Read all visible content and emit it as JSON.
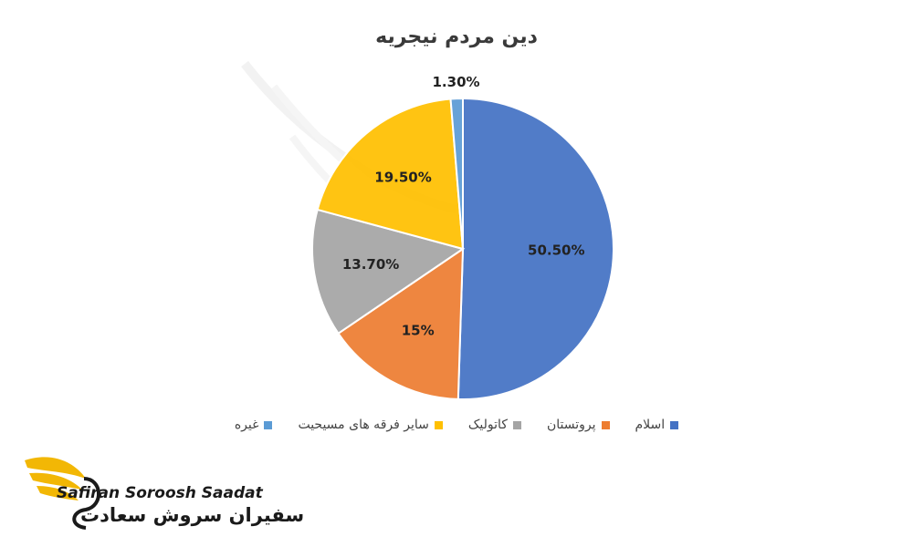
{
  "chart_data": {
    "type": "pie",
    "title": "دین مردم نیجریه",
    "slices": [
      {
        "name": "اسلام",
        "value": 50.5,
        "label": "50.50%",
        "color": "#4472C4"
      },
      {
        "name": "پروتستان",
        "value": 15.0,
        "label": "15%",
        "color": "#ED7D31"
      },
      {
        "name": "کاتولیک",
        "value": 13.7,
        "label": "13.70%",
        "color": "#A5A5A5"
      },
      {
        "name": "سایر فرقه های مسیحیت",
        "value": 19.5,
        "label": "19.50%",
        "color": "#FFC000"
      },
      {
        "name": "غیره",
        "value": 1.3,
        "label": "1.30%",
        "color": "#5B9BD5"
      }
    ],
    "legend_position": "bottom"
  },
  "brand": {
    "name_en": "Safiran Soroosh Saadat",
    "name_fa": "سفیران سروش سعادت",
    "accent_color": "#F2B705"
  }
}
